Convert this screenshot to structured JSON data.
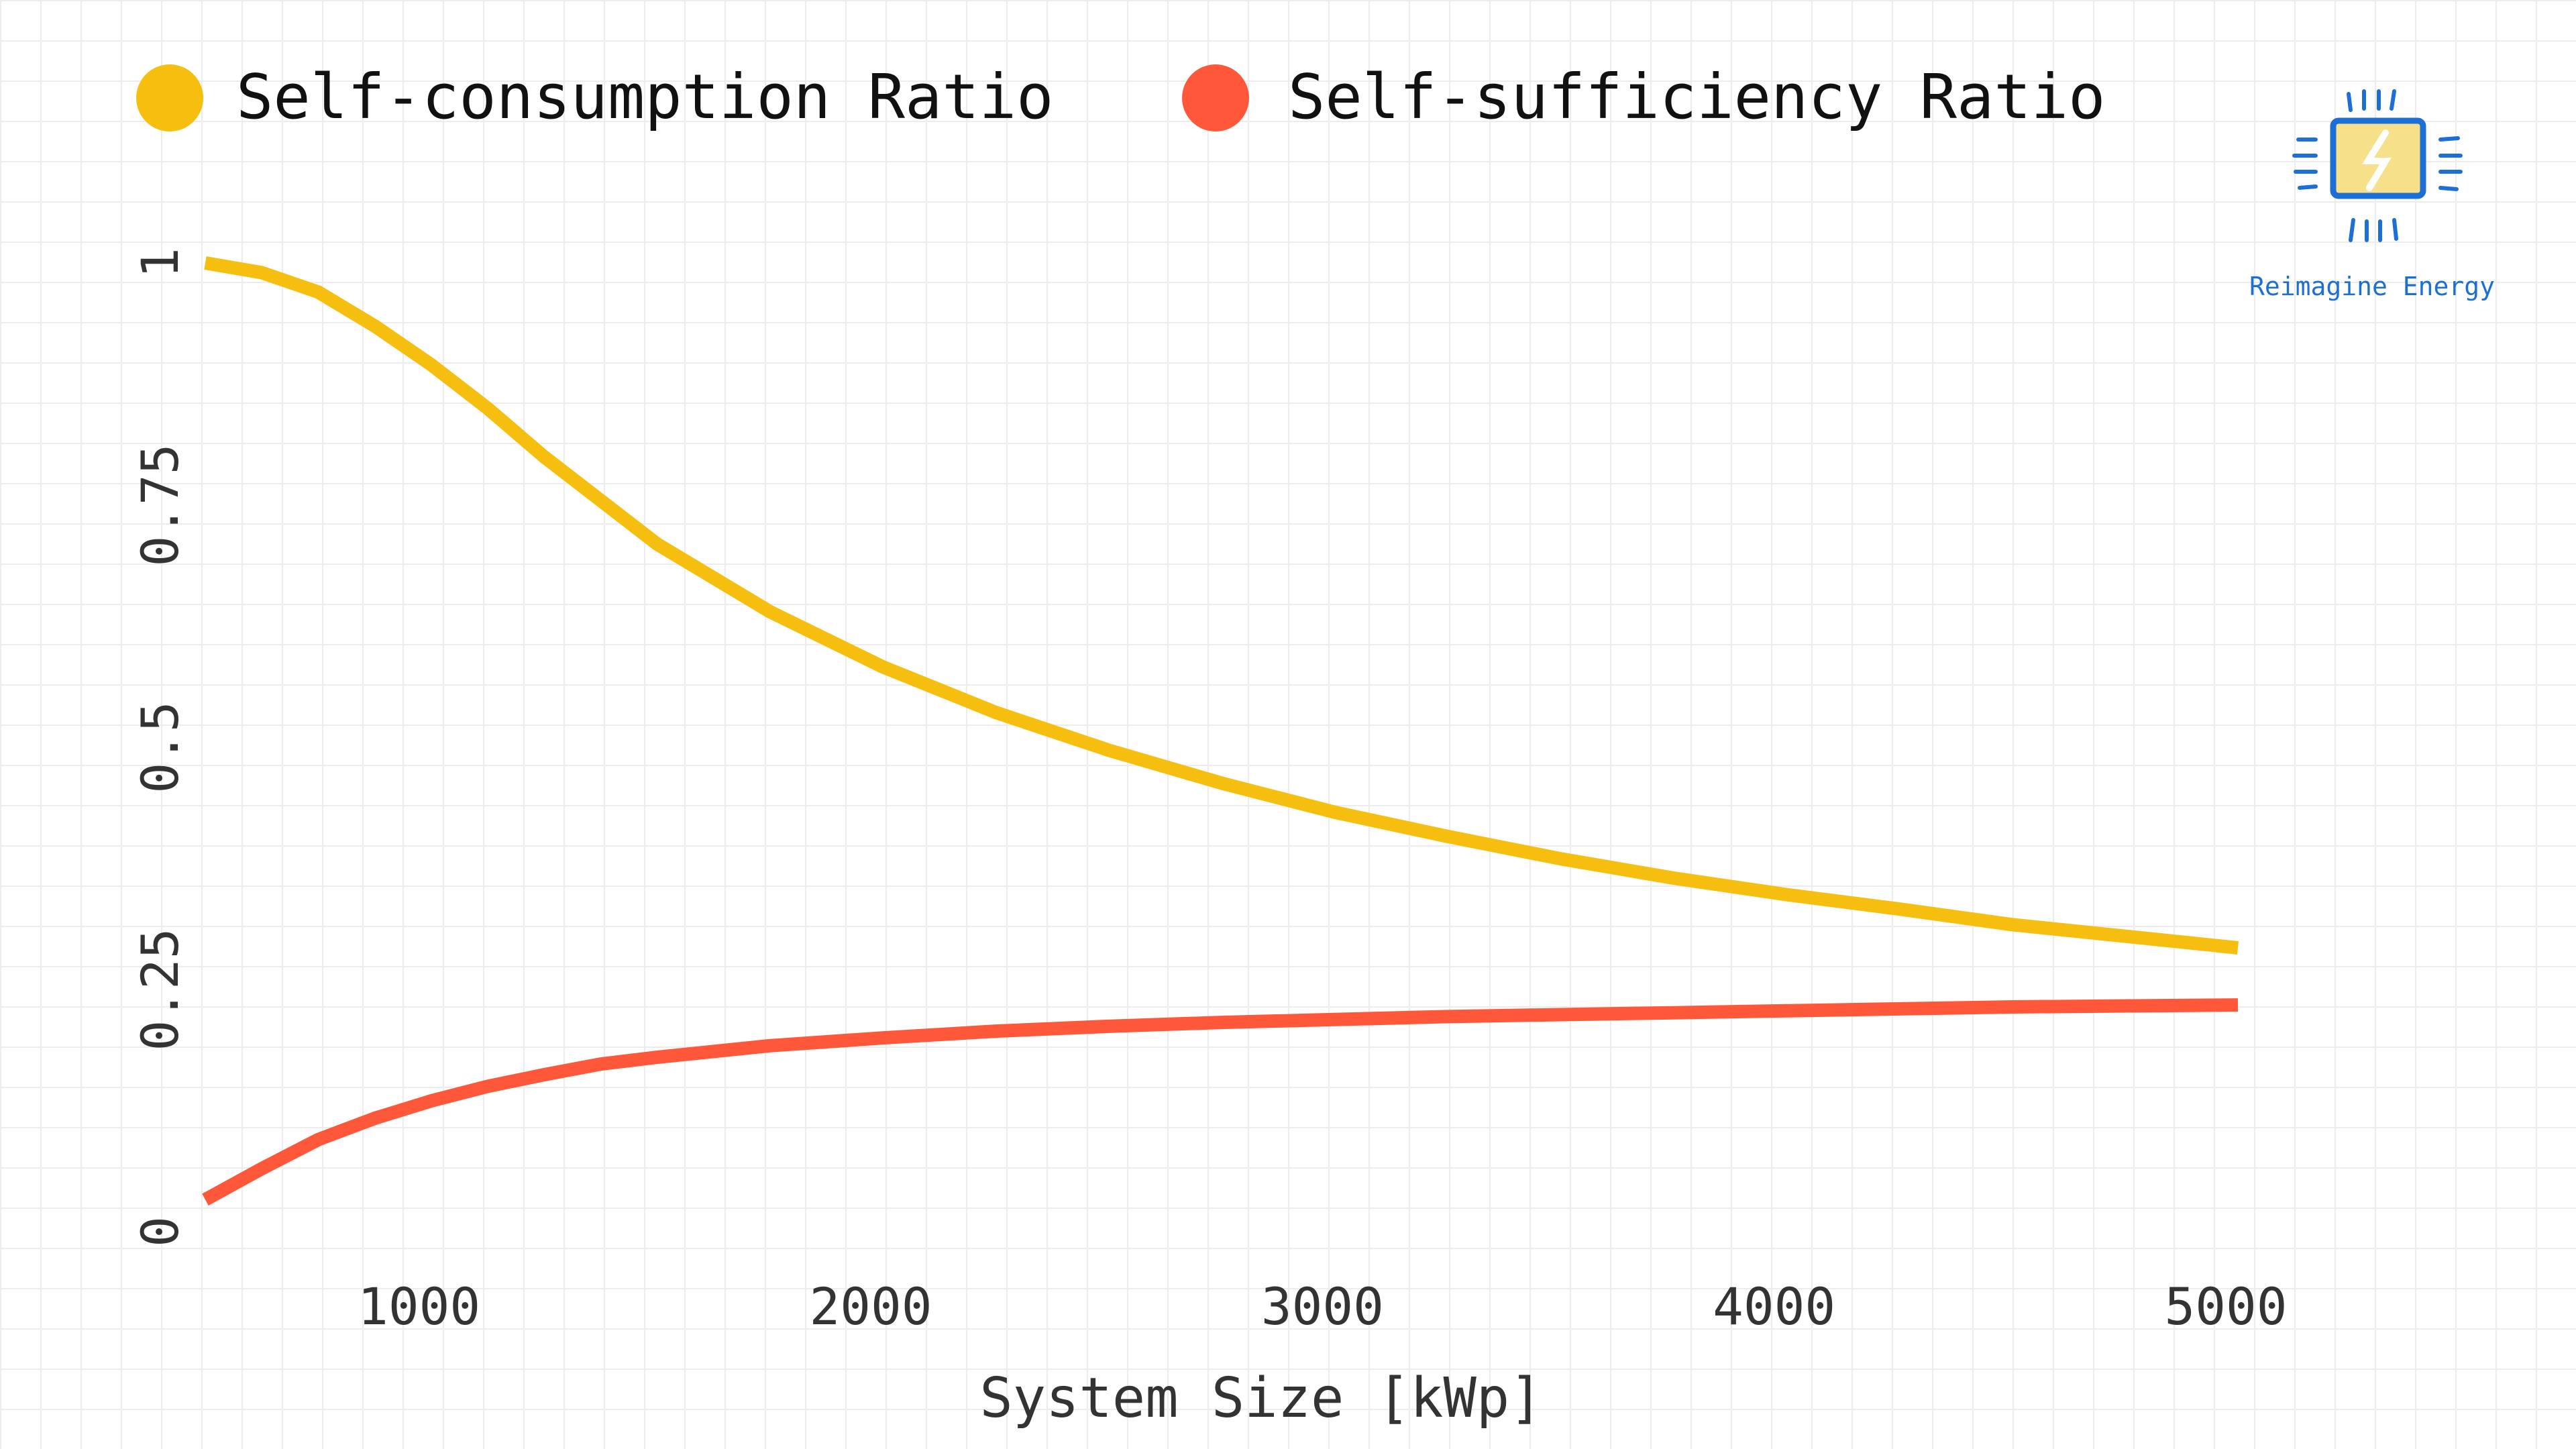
{
  "chart_data": {
    "type": "line",
    "xlabel": "System Size [kWp]",
    "ylabel": "",
    "xlim": [
      500,
      5500
    ],
    "ylim": [
      0,
      1.08
    ],
    "x_ticks": [
      1000,
      2000,
      3000,
      4000,
      5000
    ],
    "y_ticks": [
      0,
      0.25,
      0.5,
      0.75,
      1
    ],
    "x_tick_labels": [
      "1000",
      "2000",
      "3000",
      "4000",
      "5000"
    ],
    "y_tick_labels": [
      "0",
      "0.25",
      "0.5",
      "0.75",
      "1"
    ],
    "grid": true,
    "legend_position": "top",
    "series": [
      {
        "name": "Self-consumption Ratio",
        "color": "#f6be0f",
        "x": [
          500,
          625,
          750,
          875,
          1000,
          1125,
          1250,
          1375,
          1500,
          1750,
          2000,
          2250,
          2500,
          2750,
          3000,
          3250,
          3500,
          3750,
          4000,
          4250,
          4500,
          4750,
          5000
        ],
        "y": [
          1.0,
          0.99,
          0.97,
          0.935,
          0.895,
          0.85,
          0.8,
          0.755,
          0.71,
          0.64,
          0.583,
          0.536,
          0.497,
          0.463,
          0.433,
          0.408,
          0.385,
          0.365,
          0.348,
          0.333,
          0.317,
          0.305,
          0.293
        ]
      },
      {
        "name": "Self-sufficiency Ratio",
        "color": "#ff573a",
        "x": [
          500,
          625,
          750,
          875,
          1000,
          1125,
          1250,
          1375,
          1500,
          1750,
          2000,
          2250,
          2500,
          2750,
          3000,
          3250,
          3500,
          3750,
          4000,
          4250,
          4500,
          4750,
          5000
        ],
        "y": [
          0.033,
          0.065,
          0.095,
          0.117,
          0.135,
          0.15,
          0.162,
          0.173,
          0.18,
          0.192,
          0.2,
          0.207,
          0.212,
          0.216,
          0.219,
          0.222,
          0.224,
          0.226,
          0.228,
          0.23,
          0.232,
          0.233,
          0.234
        ]
      }
    ]
  },
  "logo": {
    "text": "Reimagine Energy",
    "icon": "chip-lightning-icon",
    "colors": {
      "outline": "#1d6fd6",
      "fill": "#f7e08a"
    }
  }
}
